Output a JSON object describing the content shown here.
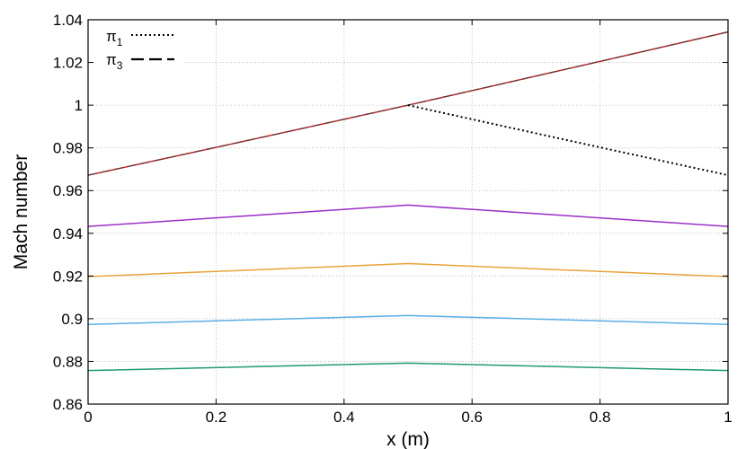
{
  "chart_data": {
    "type": "line",
    "title": "",
    "xlabel": "x (m)",
    "ylabel": "Mach number",
    "xlim": [
      0,
      1
    ],
    "ylim": [
      0.86,
      1.04
    ],
    "grid": true,
    "legend_position": "top-left",
    "xticks": [
      0,
      0.2,
      0.4,
      0.6,
      0.8,
      1
    ],
    "xtick_labels": [
      "0",
      "0.2",
      "0.4",
      "0.6",
      "0.8",
      "1"
    ],
    "yticks": [
      0.86,
      0.88,
      0.9,
      0.92,
      0.94,
      0.96,
      0.98,
      1,
      1.02,
      1.04
    ],
    "ytick_labels": [
      "0.86",
      "0.88",
      "0.9",
      "0.92",
      "0.94",
      "0.96",
      "0.98",
      "1",
      "1.02",
      "1.04"
    ],
    "legend": [
      {
        "label": "π",
        "sub": "1",
        "style": "dotted",
        "color": "#000000"
      },
      {
        "label": "π",
        "sub": "3",
        "style": "dashed",
        "color": "#000000"
      }
    ],
    "series": [
      {
        "name": "red",
        "color": "#c0282a",
        "style": "solid",
        "kind": "accel",
        "m0": 0.9672,
        "m1": 1.0343
      },
      {
        "name": "pi3",
        "color": "#3a3a3a",
        "style": "dashed",
        "kind": "accel",
        "m0": 0.9672,
        "m1": 1.0343
      },
      {
        "name": "pi1",
        "color": "#000000",
        "style": "dotted",
        "kind": "decel",
        "m0": 0.9672,
        "m1": 0.9672
      },
      {
        "name": "purple",
        "color": "#9a2fc7",
        "style": "solid",
        "kind": "linear",
        "x": [
          0,
          0.5,
          1
        ],
        "y": [
          0.9432,
          0.9532,
          0.9432
        ]
      },
      {
        "name": "orange",
        "color": "#e8a33b",
        "style": "solid",
        "kind": "linear",
        "x": [
          0,
          0.5,
          1
        ],
        "y": [
          0.9197,
          0.9258,
          0.9197
        ]
      },
      {
        "name": "light-blue",
        "color": "#5aaee4",
        "style": "solid",
        "kind": "linear",
        "x": [
          0,
          0.5,
          1
        ],
        "y": [
          0.8973,
          0.9015,
          0.8973
        ]
      },
      {
        "name": "green",
        "color": "#1f9a70",
        "style": "solid",
        "kind": "linear",
        "x": [
          0,
          0.5,
          1
        ],
        "y": [
          0.8757,
          0.8792,
          0.8757
        ]
      }
    ]
  }
}
